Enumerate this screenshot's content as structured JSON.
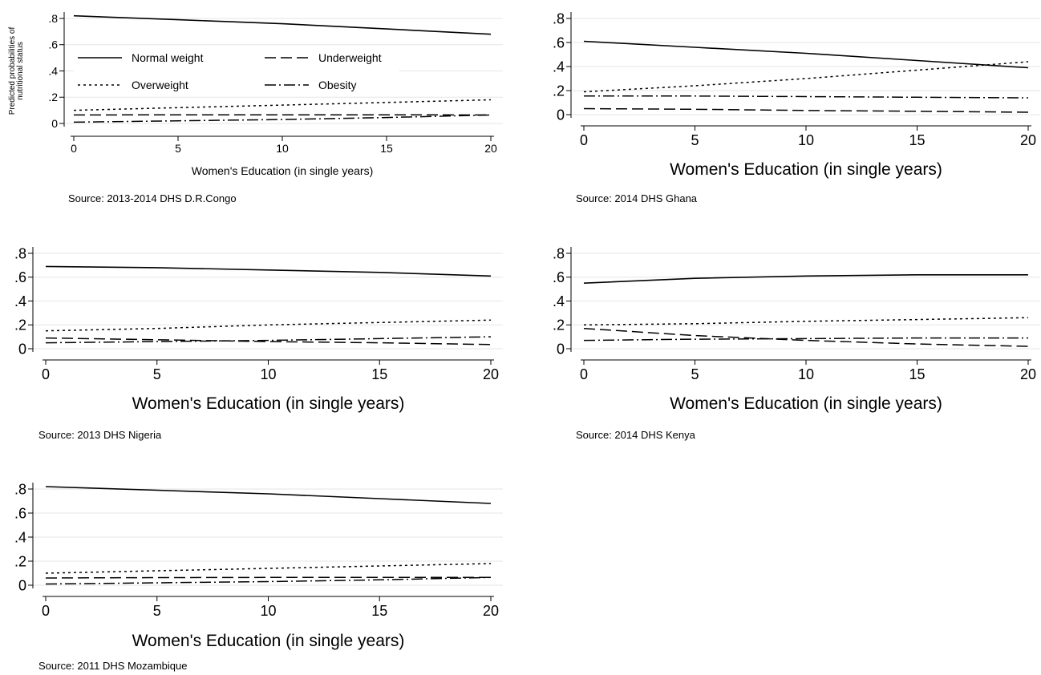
{
  "chart_data": [
    {
      "type": "line",
      "ylabel": "Predicted probabilities of nutritional status",
      "xlabel": "Women's Education (in single years)",
      "source": "Source: 2013-2014 DHS D.R.Congo",
      "xlim": [
        0,
        20
      ],
      "ylim": [
        0,
        0.8
      ],
      "x_ticks": [
        0,
        5,
        10,
        15,
        20
      ],
      "y_ticks": [
        0,
        0.2,
        0.4,
        0.6,
        0.8
      ],
      "y_tick_labels": [
        "0",
        ".2",
        ".4",
        ".6",
        ".8"
      ],
      "grid": "horizontal",
      "legend": {
        "placement": "inside-left",
        "entries": [
          {
            "label": "Normal weight",
            "style": "solid"
          },
          {
            "label": "Underweight",
            "style": "dash"
          },
          {
            "label": "Overweight",
            "style": "dot"
          },
          {
            "label": "Obesity",
            "style": "dashdot"
          }
        ]
      },
      "x": [
        0,
        5,
        10,
        15,
        20
      ],
      "series": [
        {
          "name": "Normal weight",
          "style": "solid",
          "values": [
            0.82,
            0.79,
            0.76,
            0.72,
            0.68
          ]
        },
        {
          "name": "Overweight",
          "style": "dot",
          "values": [
            0.1,
            0.12,
            0.14,
            0.16,
            0.18
          ]
        },
        {
          "name": "Underweight",
          "style": "dash",
          "values": [
            0.065,
            0.066,
            0.066,
            0.066,
            0.065
          ]
        },
        {
          "name": "Obesity",
          "style": "dashdot",
          "values": [
            0.01,
            0.02,
            0.03,
            0.045,
            0.065
          ]
        }
      ]
    },
    {
      "type": "line",
      "xlabel": "Women's Education (in single years)",
      "source": "Source: 2014 DHS Ghana",
      "xlim": [
        0,
        20
      ],
      "ylim": [
        0,
        0.8
      ],
      "x_ticks": [
        0,
        5,
        10,
        15,
        20
      ],
      "y_ticks": [
        0,
        0.2,
        0.4,
        0.6,
        0.8
      ],
      "y_tick_labels": [
        "0",
        ".2",
        ".4",
        ".6",
        ".8"
      ],
      "grid": "horizontal",
      "x": [
        0,
        5,
        10,
        15,
        20
      ],
      "series": [
        {
          "name": "Normal weight",
          "style": "solid",
          "values": [
            0.61,
            0.56,
            0.51,
            0.45,
            0.39
          ]
        },
        {
          "name": "Overweight",
          "style": "dot",
          "values": [
            0.19,
            0.24,
            0.3,
            0.37,
            0.44
          ]
        },
        {
          "name": "Obesity",
          "style": "dashdot",
          "values": [
            0.155,
            0.155,
            0.15,
            0.145,
            0.14
          ]
        },
        {
          "name": "Underweight",
          "style": "dash",
          "values": [
            0.05,
            0.045,
            0.035,
            0.028,
            0.02
          ]
        }
      ]
    },
    {
      "type": "line",
      "xlabel": "Women's Education (in single years)",
      "source": "Source: 2013 DHS Nigeria",
      "xlim": [
        0,
        20
      ],
      "ylim": [
        0,
        0.8
      ],
      "x_ticks": [
        0,
        5,
        10,
        15,
        20
      ],
      "y_ticks": [
        0,
        0.2,
        0.4,
        0.6,
        0.8
      ],
      "y_tick_labels": [
        "0",
        ".2",
        ".4",
        ".6",
        ".8"
      ],
      "grid": "horizontal",
      "x": [
        0,
        5,
        10,
        15,
        20
      ],
      "series": [
        {
          "name": "Normal weight",
          "style": "solid",
          "values": [
            0.69,
            0.68,
            0.66,
            0.64,
            0.61
          ]
        },
        {
          "name": "Overweight",
          "style": "dot",
          "values": [
            0.15,
            0.17,
            0.2,
            0.22,
            0.24
          ]
        },
        {
          "name": "Obesity",
          "style": "dashdot",
          "values": [
            0.05,
            0.06,
            0.07,
            0.085,
            0.1
          ]
        },
        {
          "name": "Underweight",
          "style": "dash",
          "values": [
            0.09,
            0.075,
            0.06,
            0.05,
            0.035
          ]
        }
      ]
    },
    {
      "type": "line",
      "xlabel": "Women's Education (in single years)",
      "source": "Source: 2014 DHS Kenya",
      "xlim": [
        0,
        20
      ],
      "ylim": [
        0,
        0.8
      ],
      "x_ticks": [
        0,
        5,
        10,
        15,
        20
      ],
      "y_ticks": [
        0,
        0.2,
        0.4,
        0.6,
        0.8
      ],
      "y_tick_labels": [
        "0",
        ".2",
        ".4",
        ".6",
        ".8"
      ],
      "grid": "horizontal",
      "x": [
        0,
        5,
        10,
        15,
        20
      ],
      "series": [
        {
          "name": "Normal weight",
          "style": "solid",
          "values": [
            0.55,
            0.59,
            0.61,
            0.62,
            0.62
          ]
        },
        {
          "name": "Overweight",
          "style": "dot",
          "values": [
            0.2,
            0.21,
            0.23,
            0.245,
            0.26
          ]
        },
        {
          "name": "Obesity",
          "style": "dashdot",
          "values": [
            0.07,
            0.08,
            0.085,
            0.09,
            0.09
          ]
        },
        {
          "name": "Underweight",
          "style": "dash",
          "values": [
            0.17,
            0.11,
            0.07,
            0.04,
            0.02
          ]
        }
      ]
    },
    {
      "type": "line",
      "xlabel": "Women's Education (in single years)",
      "source": "Source: 2011 DHS Mozambique",
      "xlim": [
        0,
        20
      ],
      "ylim": [
        0,
        0.8
      ],
      "x_ticks": [
        0,
        5,
        10,
        15,
        20
      ],
      "y_ticks": [
        0,
        0.2,
        0.4,
        0.6,
        0.8
      ],
      "y_tick_labels": [
        "0",
        ".2",
        ".4",
        ".6",
        ".8"
      ],
      "grid": "horizontal",
      "x": [
        0,
        5,
        10,
        15,
        20
      ],
      "series": [
        {
          "name": "Normal weight",
          "style": "solid",
          "values": [
            0.82,
            0.79,
            0.76,
            0.72,
            0.68
          ]
        },
        {
          "name": "Overweight",
          "style": "dot",
          "values": [
            0.1,
            0.12,
            0.14,
            0.16,
            0.18
          ]
        },
        {
          "name": "Underweight",
          "style": "dash",
          "values": [
            0.06,
            0.063,
            0.065,
            0.065,
            0.065
          ]
        },
        {
          "name": "Obesity",
          "style": "dashdot",
          "values": [
            0.01,
            0.02,
            0.03,
            0.045,
            0.065
          ]
        }
      ]
    }
  ]
}
